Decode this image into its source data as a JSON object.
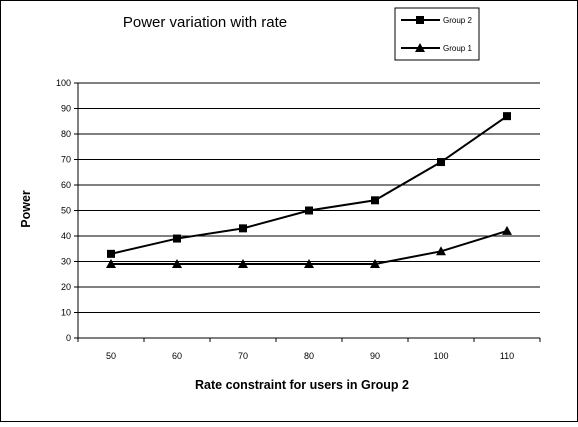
{
  "chart_data": {
    "type": "line",
    "title": "Power variation with rate",
    "xlabel": "Rate constraint for users in Group 2",
    "ylabel": "Power",
    "categories": [
      "50",
      "60",
      "70",
      "80",
      "90",
      "100",
      "110"
    ],
    "yticks": [
      "0",
      "10",
      "20",
      "30",
      "40",
      "50",
      "60",
      "70",
      "80",
      "90",
      "100"
    ],
    "ylim": [
      0,
      100
    ],
    "grid": true,
    "legend_position": "top-right",
    "series": [
      {
        "name": "Group 2",
        "marker": "square",
        "color": "#000000",
        "values": [
          33,
          39,
          43,
          50,
          54,
          69,
          87
        ]
      },
      {
        "name": "Group 1",
        "marker": "triangle",
        "color": "#000000",
        "values": [
          29,
          29,
          29,
          29,
          29,
          34,
          42
        ]
      }
    ]
  }
}
